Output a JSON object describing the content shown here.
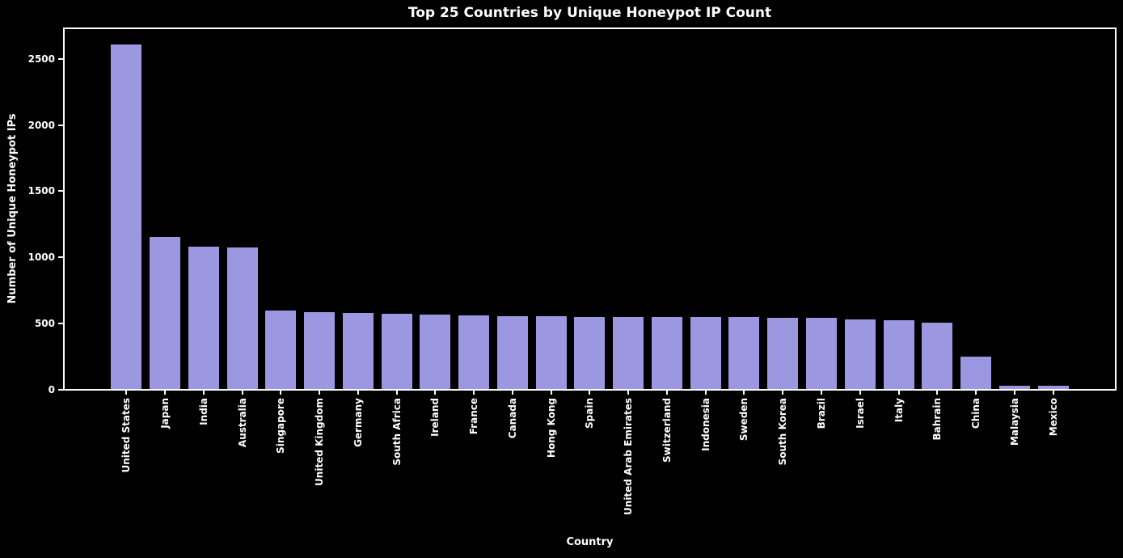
{
  "chart_data": {
    "type": "bar",
    "title": "Top 25 Countries by Unique Honeypot IP Count",
    "xlabel": "Country",
    "ylabel": "Number of Unique Honeypot IPs",
    "categories": [
      "United States",
      "Japan",
      "India",
      "Australia",
      "Singapore",
      "United Kingdom",
      "Germany",
      "South Africa",
      "Ireland",
      "France",
      "Canada",
      "Hong Kong",
      "Spain",
      "United Arab Emirates",
      "Switzerland",
      "Indonesia",
      "Sweden",
      "South Korea",
      "Brazil",
      "Israel",
      "Italy",
      "Bahrain",
      "China",
      "Malaysia",
      "Mexico"
    ],
    "values": [
      2600,
      1150,
      1075,
      1070,
      595,
      580,
      572,
      566,
      562,
      558,
      552,
      548,
      545,
      544,
      543,
      542,
      541,
      540,
      538,
      528,
      517,
      502,
      246,
      26,
      22
    ],
    "yticks": [
      0,
      500,
      1000,
      1500,
      2000,
      2500
    ],
    "ylim": [
      0,
      2730
    ],
    "grid": false,
    "legend": "none",
    "bar_color": "#9b97e0",
    "background_color": "#000000",
    "text_color": "#ffffff"
  }
}
